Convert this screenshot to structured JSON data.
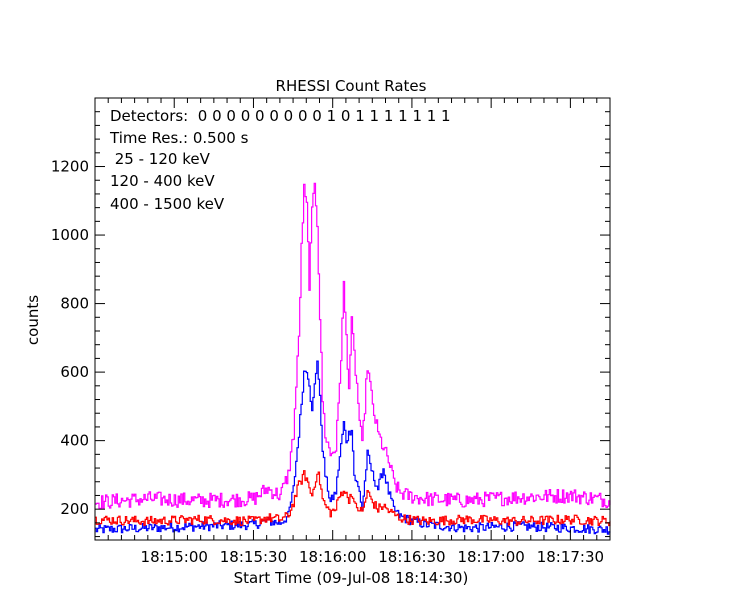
{
  "chart_data": {
    "type": "line",
    "title": "RHESSI Count Rates",
    "xlabel": "Start Time (09-Jul-08 18:14:30)",
    "ylabel": "counts",
    "ylim": [
      110,
      1400
    ],
    "xlim": [
      "18:14:30",
      "18:17:45"
    ],
    "x_tick_labels": [
      "18:15:00",
      "18:15:30",
      "18:16:00",
      "18:16:30",
      "18:17:00",
      "18:17:30"
    ],
    "x_tick_seconds": [
      30,
      60,
      90,
      120,
      150,
      180
    ],
    "y_tick_labels": [
      "200",
      "400",
      "600",
      "800",
      "1000",
      "1200"
    ],
    "y_tick_values": [
      200,
      400,
      600,
      800,
      1000,
      1200
    ],
    "grid": false,
    "annotations": {
      "detectors": "Detectors:  0 0 0 0 0 0 0 0 0 1 0 1 1 1 1 1 1 1",
      "time_res": "Time Res.: 0.500 s"
    },
    "legend_placement": "top-left",
    "series": [
      {
        "name": " 25 - 120 keV",
        "color": "#0000ff",
        "x": [
          0,
          20,
          40,
          60,
          65,
          70,
          73,
          75,
          77,
          79,
          80,
          81,
          82,
          84,
          85,
          86,
          87,
          89,
          91,
          92,
          94,
          95,
          96,
          97,
          98,
          100,
          101,
          102,
          103,
          105,
          107,
          109,
          111,
          113,
          115,
          118,
          125,
          140,
          160,
          180,
          195
        ],
        "y": [
          140,
          145,
          150,
          155,
          165,
          160,
          180,
          260,
          420,
          600,
          610,
          570,
          480,
          640,
          520,
          380,
          300,
          220,
          250,
          320,
          450,
          400,
          420,
          440,
          300,
          250,
          200,
          280,
          360,
          300,
          260,
          320,
          250,
          200,
          180,
          170,
          155,
          145,
          150,
          145,
          140
        ]
      },
      {
        "name": "120 - 400 keV",
        "color": "#ff00ff",
        "x": [
          0,
          20,
          40,
          60,
          65,
          70,
          73,
          75,
          77,
          78,
          79,
          80,
          81,
          82,
          83,
          84,
          85,
          86,
          87,
          89,
          91,
          92,
          93,
          94,
          95,
          96,
          97,
          98,
          99,
          100,
          101,
          102,
          103,
          105,
          107,
          109,
          111,
          113,
          115,
          118,
          125,
          140,
          160,
          180,
          195
        ],
        "y": [
          220,
          230,
          225,
          230,
          260,
          240,
          300,
          420,
          700,
          960,
          1130,
          1080,
          860,
          1060,
          1160,
          1040,
          760,
          520,
          420,
          360,
          380,
          500,
          650,
          850,
          700,
          560,
          740,
          650,
          560,
          460,
          380,
          500,
          620,
          500,
          420,
          380,
          340,
          280,
          250,
          240,
          230,
          225,
          235,
          240,
          225
        ]
      },
      {
        "name": "400 - 1500 keV",
        "color": "#ff0000",
        "x": [
          0,
          20,
          40,
          60,
          65,
          70,
          73,
          75,
          77,
          79,
          80,
          81,
          82,
          84,
          85,
          86,
          87,
          89,
          91,
          92,
          94,
          95,
          96,
          97,
          98,
          100,
          101,
          102,
          103,
          105,
          107,
          109,
          111,
          113,
          115,
          118,
          125,
          140,
          160,
          180,
          195
        ],
        "y": [
          170,
          165,
          170,
          165,
          175,
          170,
          180,
          220,
          270,
          300,
          290,
          260,
          240,
          310,
          280,
          230,
          210,
          190,
          200,
          230,
          260,
          240,
          230,
          250,
          210,
          200,
          190,
          220,
          250,
          220,
          200,
          210,
          195,
          185,
          175,
          170,
          165,
          170,
          165,
          170,
          165
        ]
      }
    ]
  }
}
